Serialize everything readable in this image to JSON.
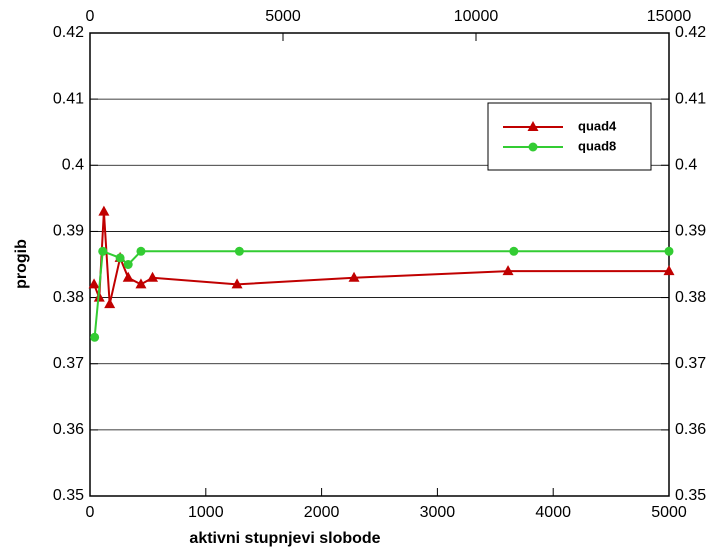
{
  "chart_data": {
    "type": "line",
    "x_label": "aktivni stupnjevi slobode",
    "y_label": "progib",
    "series": [
      {
        "name": "quad4",
        "color": "#c00000",
        "marker": "triangle",
        "x": [
          35,
          80,
          120,
          170,
          260,
          330,
          440,
          540,
          1270,
          2280,
          3610,
          5000
        ],
        "values": [
          0.382,
          0.38,
          0.393,
          0.379,
          0.386,
          0.383,
          0.382,
          0.383,
          0.382,
          0.383,
          0.384,
          0.384
        ]
      },
      {
        "name": "quad8",
        "color": "#33cc33",
        "marker": "circle",
        "x": [
          40,
          110,
          260,
          330,
          440,
          1290,
          3660,
          5000
        ],
        "values": [
          0.374,
          0.387,
          0.386,
          0.385,
          0.387,
          0.387,
          0.387,
          0.387
        ]
      }
    ],
    "xlim": [
      0,
      5000
    ],
    "xticks": [
      0,
      1000,
      2000,
      3000,
      4000,
      5000
    ],
    "x2lim": [
      0,
      15000
    ],
    "x2ticks": [
      0,
      5000,
      10000,
      15000
    ],
    "ylim": [
      0.35,
      0.42
    ],
    "yticks": [
      0.35,
      0.36,
      0.37,
      0.38,
      0.39,
      0.4,
      0.41,
      0.42
    ],
    "grid": true,
    "legend": "upper right"
  }
}
